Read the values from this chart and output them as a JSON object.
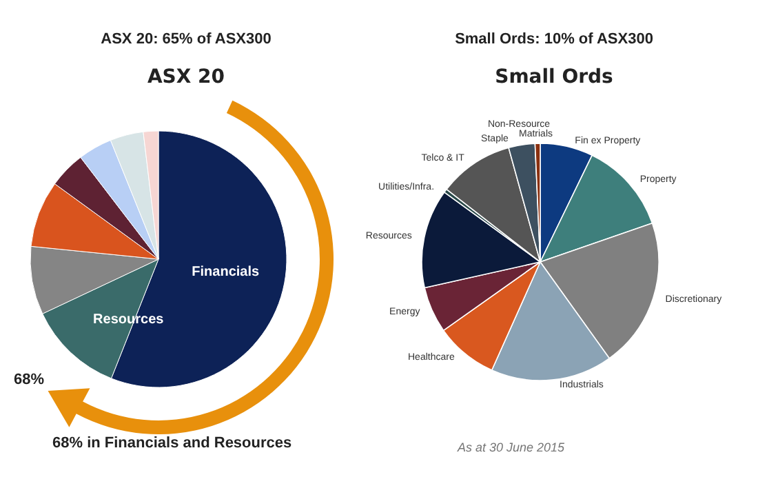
{
  "chart_data": [
    {
      "type": "pie",
      "title": "ASX 20: 65% of ASX300",
      "subtitle": "ASX 20",
      "categories": [
        "Financials",
        "Resources",
        null,
        null,
        null,
        null,
        null,
        null
      ],
      "values": [
        56,
        12,
        8.6,
        8.4,
        4.6,
        4.3,
        4.2,
        1.9
      ],
      "colors": [
        "#0d2257",
        "#3a6b6a",
        "#858585",
        "#d9541e",
        "#5e2233",
        "#b8cff5",
        "#d7e4e6",
        "#f6d6d3"
      ],
      "annotations": [
        "68%",
        "68% in Financials and Resources"
      ]
    },
    {
      "type": "pie",
      "title": "Small Ords: 10% of ASX300",
      "subtitle": "Small Ords",
      "categories": [
        "Fin ex Property",
        "Property",
        "Discretionary",
        "Industrials",
        "Healthcare",
        "Energy",
        "Resources",
        "Utilities/Infra.",
        "Telco & IT",
        "Staple",
        "Non-Resource Matrials"
      ],
      "values": [
        7.2,
        12.5,
        20.4,
        16.6,
        8.5,
        6.3,
        13.5,
        0.5,
        10.2,
        3.6,
        0.7
      ],
      "colors": [
        "#0d3a80",
        "#3e7f7c",
        "#808080",
        "#8ba3b5",
        "#d9581f",
        "#6a2436",
        "#0b1a3a",
        "#2a4a4a",
        "#555555",
        "#3d5060",
        "#8a3010"
      ],
      "annotations": [
        "As at 30 June 2015"
      ]
    }
  ]
}
